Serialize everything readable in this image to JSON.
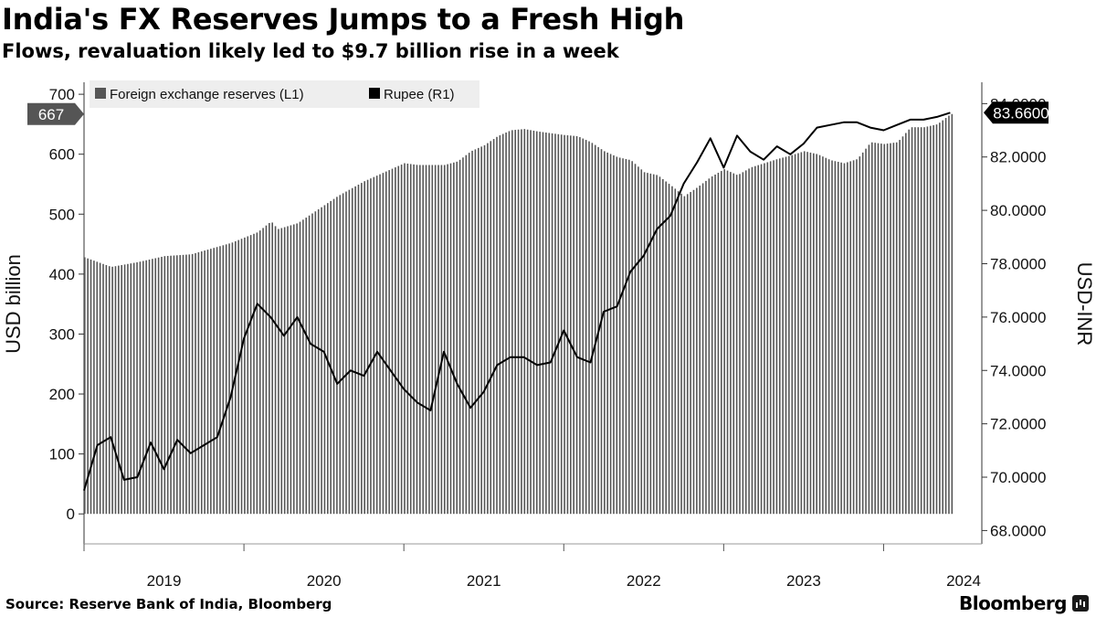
{
  "header": {
    "title": "India's FX Reserves Jumps to a Fresh High",
    "subtitle": "Flows, revaluation likely led to $9.7 billion rise in a week"
  },
  "footer": {
    "source": "Source: Reserve Bank of India, Bloomberg",
    "brand": "Bloomberg",
    "brand_icon": "bloomberg-chart-icon"
  },
  "chart_data": {
    "type": "bar",
    "x_axis": {
      "tick_labels": [
        "2019",
        "2020",
        "2021",
        "2022",
        "2023",
        "2024"
      ],
      "start": "2019-01",
      "end": "2024-06"
    },
    "y_left": {
      "label": "USD billion",
      "range": [
        -50,
        720
      ],
      "ticks": [
        0,
        100,
        200,
        300,
        400,
        500,
        600,
        700
      ]
    },
    "y_right": {
      "label": "USD-INR",
      "range": [
        67.5,
        84.8
      ],
      "ticks": [
        "68.0000",
        "70.0000",
        "72.0000",
        "74.0000",
        "76.0000",
        "78.0000",
        "80.0000",
        "82.0000",
        "84.0000"
      ]
    },
    "legend": {
      "position": "top-left",
      "items": [
        {
          "name": "Foreign exchange reserves (L1)",
          "color": "#555555"
        },
        {
          "name": "Rupee (R1)",
          "color": "#000000"
        }
      ]
    },
    "last_value_labels": {
      "reserves": "667",
      "rupee": "83.6600"
    },
    "series": [
      {
        "name": "Foreign exchange reserves (L1)",
        "kind": "bar",
        "color": "#555555",
        "points": [
          [
            "2019-01",
            428
          ],
          [
            "2019-03",
            412
          ],
          [
            "2019-05",
            420
          ],
          [
            "2019-07",
            430
          ],
          [
            "2019-09",
            433
          ],
          [
            "2019-12",
            452
          ],
          [
            "2020-02",
            470
          ],
          [
            "2020-03",
            488
          ],
          [
            "2020-03.5",
            475
          ],
          [
            "2020-05",
            485
          ],
          [
            "2020-06",
            500
          ],
          [
            "2020-08",
            530
          ],
          [
            "2020-10",
            555
          ],
          [
            "2020-12",
            575
          ],
          [
            "2021-01",
            585
          ],
          [
            "2021-02",
            582
          ],
          [
            "2021-04",
            582
          ],
          [
            "2021-05",
            588
          ],
          [
            "2021-06",
            605
          ],
          [
            "2021-07",
            615
          ],
          [
            "2021-08",
            630
          ],
          [
            "2021-09",
            640
          ],
          [
            "2021-10",
            642
          ],
          [
            "2021-11",
            638
          ],
          [
            "2021-12",
            635
          ],
          [
            "2022-01",
            632
          ],
          [
            "2022-02",
            630
          ],
          [
            "2022-03",
            620
          ],
          [
            "2022-04",
            605
          ],
          [
            "2022-05",
            595
          ],
          [
            "2022-06",
            590
          ],
          [
            "2022-07",
            570
          ],
          [
            "2022-08",
            565
          ],
          [
            "2022-09",
            548
          ],
          [
            "2022-10",
            530
          ],
          [
            "2022-11",
            545
          ],
          [
            "2022-12",
            562
          ],
          [
            "2023-01",
            575
          ],
          [
            "2023-02",
            565
          ],
          [
            "2023-03",
            578
          ],
          [
            "2023-04",
            585
          ],
          [
            "2023-05",
            592
          ],
          [
            "2023-06",
            598
          ],
          [
            "2023-07",
            605
          ],
          [
            "2023-08",
            600
          ],
          [
            "2023-09",
            590
          ],
          [
            "2023-10",
            585
          ],
          [
            "2023-11",
            592
          ],
          [
            "2023-12",
            620
          ],
          [
            "2024-01",
            617
          ],
          [
            "2024-02",
            620
          ],
          [
            "2024-03",
            645
          ],
          [
            "2024-04",
            645
          ],
          [
            "2024-05",
            650
          ],
          [
            "2024-06",
            667
          ]
        ]
      },
      {
        "name": "Rupee (R1)",
        "kind": "line",
        "color": "#000000",
        "points": [
          [
            "2019-01",
            69.5
          ],
          [
            "2019-02",
            71.2
          ],
          [
            "2019-03",
            71.5
          ],
          [
            "2019-04",
            69.9
          ],
          [
            "2019-05",
            70.0
          ],
          [
            "2019-06",
            71.3
          ],
          [
            "2019-07",
            70.3
          ],
          [
            "2019-08",
            71.4
          ],
          [
            "2019-09",
            70.9
          ],
          [
            "2019-10",
            71.2
          ],
          [
            "2019-11",
            71.5
          ],
          [
            "2019-12",
            73.0
          ],
          [
            "2020-01",
            75.2
          ],
          [
            "2020-02",
            76.5
          ],
          [
            "2020-03",
            76.0
          ],
          [
            "2020-04",
            75.3
          ],
          [
            "2020-05",
            76.0
          ],
          [
            "2020-06",
            75.0
          ],
          [
            "2020-07",
            74.7
          ],
          [
            "2020-08",
            73.5
          ],
          [
            "2020-09",
            74.0
          ],
          [
            "2020-10",
            73.8
          ],
          [
            "2020-11",
            74.7
          ],
          [
            "2020-12",
            74.0
          ],
          [
            "2021-01",
            73.3
          ],
          [
            "2021-02",
            72.8
          ],
          [
            "2021-03",
            72.5
          ],
          [
            "2021-04",
            74.7
          ],
          [
            "2021-05",
            73.5
          ],
          [
            "2021-06",
            72.6
          ],
          [
            "2021-07",
            73.2
          ],
          [
            "2021-08",
            74.2
          ],
          [
            "2021-09",
            74.5
          ],
          [
            "2021-10",
            74.5
          ],
          [
            "2021-11",
            74.2
          ],
          [
            "2021-12",
            74.3
          ],
          [
            "2022-01",
            75.5
          ],
          [
            "2022-02",
            74.5
          ],
          [
            "2022-03",
            74.3
          ],
          [
            "2022-04",
            76.2
          ],
          [
            "2022-05",
            76.4
          ],
          [
            "2022-06",
            77.7
          ],
          [
            "2022-07",
            78.3
          ],
          [
            "2022-08",
            79.3
          ],
          [
            "2022-09",
            79.8
          ],
          [
            "2022-10",
            81.0
          ],
          [
            "2022-11",
            81.8
          ],
          [
            "2022-12",
            82.7
          ],
          [
            "2023-01",
            81.6
          ],
          [
            "2023-02",
            82.8
          ],
          [
            "2023-03",
            82.2
          ],
          [
            "2023-04",
            81.9
          ],
          [
            "2023-05",
            82.4
          ],
          [
            "2023-06",
            82.1
          ],
          [
            "2023-07",
            82.5
          ],
          [
            "2023-08",
            83.1
          ],
          [
            "2023-09",
            83.2
          ],
          [
            "2023-10",
            83.3
          ],
          [
            "2023-11",
            83.3
          ],
          [
            "2023-12",
            83.1
          ],
          [
            "2024-01",
            83.0
          ],
          [
            "2024-02",
            83.2
          ],
          [
            "2024-03",
            83.4
          ],
          [
            "2024-04",
            83.4
          ],
          [
            "2024-05",
            83.5
          ],
          [
            "2024-06",
            83.66
          ]
        ]
      }
    ]
  }
}
